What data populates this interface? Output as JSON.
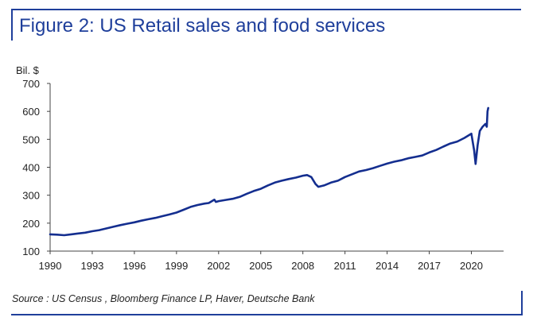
{
  "title": "Figure 2: US Retail sales and food services",
  "source": "Source : US Census , Bloomberg Finance LP, Haver, Deutsche Bank",
  "colors": {
    "accent": "#1f3f9b",
    "series": "#142e8f",
    "axis": "#444444"
  },
  "chart_data": {
    "type": "line",
    "title": "Figure 2: US Retail sales and food services",
    "ylabel": "Bil. $",
    "xlabel": "",
    "xlim": [
      1990,
      2021.2
    ],
    "ylim": [
      100,
      700
    ],
    "x_ticks": [
      "1990",
      "1993",
      "1996",
      "1999",
      "2002",
      "2005",
      "2008",
      "2011",
      "2014",
      "2017",
      "2020"
    ],
    "y_ticks": [
      "100",
      "200",
      "300",
      "400",
      "500",
      "600",
      "700"
    ],
    "grid": false,
    "legend": "none",
    "series": [
      {
        "color": "#142e8f",
        "points": [
          [
            1990.0,
            160
          ],
          [
            1990.5,
            159
          ],
          [
            1991.0,
            157
          ],
          [
            1991.5,
            160
          ],
          [
            1992.0,
            163
          ],
          [
            1992.5,
            166
          ],
          [
            1993.0,
            171
          ],
          [
            1993.5,
            175
          ],
          [
            1994.0,
            181
          ],
          [
            1994.5,
            187
          ],
          [
            1995.0,
            193
          ],
          [
            1995.5,
            198
          ],
          [
            1996.0,
            203
          ],
          [
            1996.5,
            209
          ],
          [
            1997.0,
            214
          ],
          [
            1997.5,
            219
          ],
          [
            1998.0,
            225
          ],
          [
            1998.5,
            231
          ],
          [
            1999.0,
            238
          ],
          [
            1999.5,
            248
          ],
          [
            2000.0,
            258
          ],
          [
            2000.5,
            265
          ],
          [
            2001.0,
            270
          ],
          [
            2001.3,
            272
          ],
          [
            2001.7,
            284
          ],
          [
            2001.8,
            276
          ],
          [
            2002.0,
            279
          ],
          [
            2002.5,
            283
          ],
          [
            2003.0,
            287
          ],
          [
            2003.5,
            294
          ],
          [
            2004.0,
            305
          ],
          [
            2004.5,
            315
          ],
          [
            2005.0,
            323
          ],
          [
            2005.5,
            335
          ],
          [
            2006.0,
            345
          ],
          [
            2006.5,
            352
          ],
          [
            2007.0,
            358
          ],
          [
            2007.5,
            363
          ],
          [
            2008.0,
            370
          ],
          [
            2008.3,
            372
          ],
          [
            2008.6,
            365
          ],
          [
            2008.9,
            340
          ],
          [
            2009.1,
            330
          ],
          [
            2009.5,
            335
          ],
          [
            2010.0,
            345
          ],
          [
            2010.5,
            352
          ],
          [
            2011.0,
            365
          ],
          [
            2011.5,
            375
          ],
          [
            2012.0,
            385
          ],
          [
            2012.5,
            390
          ],
          [
            2013.0,
            397
          ],
          [
            2013.5,
            405
          ],
          [
            2014.0,
            413
          ],
          [
            2014.5,
            420
          ],
          [
            2015.0,
            425
          ],
          [
            2015.5,
            432
          ],
          [
            2016.0,
            437
          ],
          [
            2016.5,
            442
          ],
          [
            2017.0,
            453
          ],
          [
            2017.5,
            462
          ],
          [
            2018.0,
            474
          ],
          [
            2018.5,
            485
          ],
          [
            2019.0,
            492
          ],
          [
            2019.5,
            505
          ],
          [
            2020.0,
            520
          ],
          [
            2020.2,
            460
          ],
          [
            2020.3,
            412
          ],
          [
            2020.45,
            480
          ],
          [
            2020.6,
            530
          ],
          [
            2020.8,
            545
          ],
          [
            2021.0,
            555
          ],
          [
            2021.1,
            545
          ],
          [
            2021.15,
            600
          ],
          [
            2021.2,
            612
          ]
        ]
      }
    ]
  }
}
